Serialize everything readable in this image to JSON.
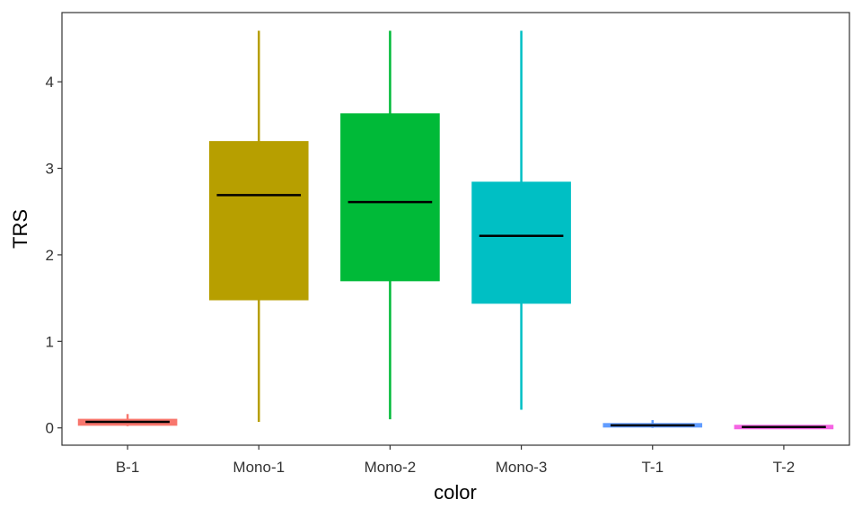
{
  "chart_data": {
    "type": "boxplot",
    "title": "",
    "xlabel": "color",
    "ylabel": "TRS",
    "ylim": [
      -0.2,
      4.8
    ],
    "yticks": [
      0,
      1,
      2,
      3,
      4
    ],
    "grid": false,
    "legend": "none",
    "categories": [
      "B-1",
      "Mono-1",
      "Mono-2",
      "Mono-3",
      "T-1",
      "T-2"
    ],
    "colors": [
      "#F8766D",
      "#B79F00",
      "#00BA38",
      "#00BFC4",
      "#619CFF",
      "#F564E3"
    ],
    "median_color": "#000000",
    "boxes": [
      {
        "min": 0.02,
        "q1": 0.03,
        "median": 0.07,
        "q3": 0.1,
        "max": 0.16
      },
      {
        "min": 0.07,
        "q1": 1.48,
        "median": 2.69,
        "q3": 3.31,
        "max": 4.59
      },
      {
        "min": 0.1,
        "q1": 1.7,
        "median": 2.61,
        "q3": 3.63,
        "max": 4.59
      },
      {
        "min": 0.21,
        "q1": 1.44,
        "median": 2.22,
        "q3": 2.84,
        "max": 4.59
      },
      {
        "min": 0.0,
        "q1": 0.01,
        "median": 0.03,
        "q3": 0.05,
        "max": 0.09
      },
      {
        "min": 0.0,
        "q1": 0.0,
        "median": 0.01,
        "q3": 0.02,
        "max": 0.03
      }
    ]
  }
}
